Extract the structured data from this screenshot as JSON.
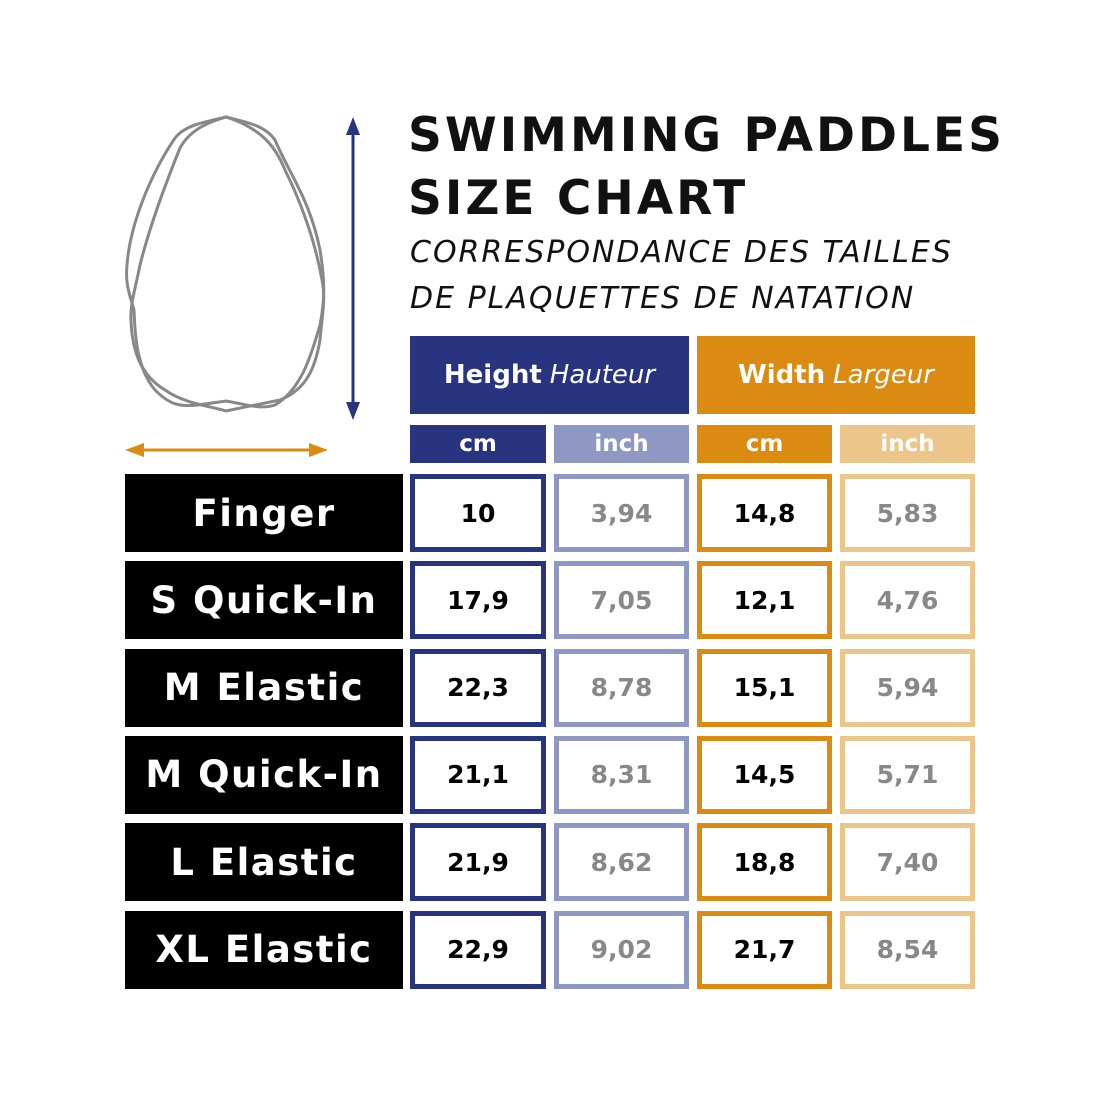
{
  "title_lines": [
    "SWIMMING PADDLES",
    "SIZE CHART"
  ],
  "subtitle_lines": [
    "CORRESPONDANCE DES TAILLES",
    "DE PLAQUETTES DE NATATION"
  ],
  "colors": {
    "height": "#283480",
    "height_light": "#8f98c3",
    "width": "#db8a12",
    "width_light": "#ecc58a"
  },
  "headers": {
    "height": {
      "en": "Height",
      "fr": "Hauteur"
    },
    "width": {
      "en": "Width",
      "fr": "Largeur"
    },
    "units": [
      "cm",
      "inch",
      "cm",
      "inch"
    ]
  },
  "rows": [
    {
      "label": "Finger",
      "values": [
        "10",
        "3,94",
        "14,8",
        "5,83"
      ]
    },
    {
      "label": "S Quick-In",
      "values": [
        "17,9",
        "7,05",
        "12,1",
        "4,76"
      ]
    },
    {
      "label": "M Elastic",
      "values": [
        "22,3",
        "8,78",
        "15,1",
        "5,94"
      ]
    },
    {
      "label": "M Quick-In",
      "values": [
        "21,1",
        "8,31",
        "14,5",
        "5,71"
      ]
    },
    {
      "label": "L Elastic",
      "values": [
        "21,9",
        "8,62",
        "18,8",
        "7,40"
      ]
    },
    {
      "label": "XL Elastic",
      "values": [
        "22,9",
        "9,02",
        "21,7",
        "8,54"
      ]
    }
  ]
}
